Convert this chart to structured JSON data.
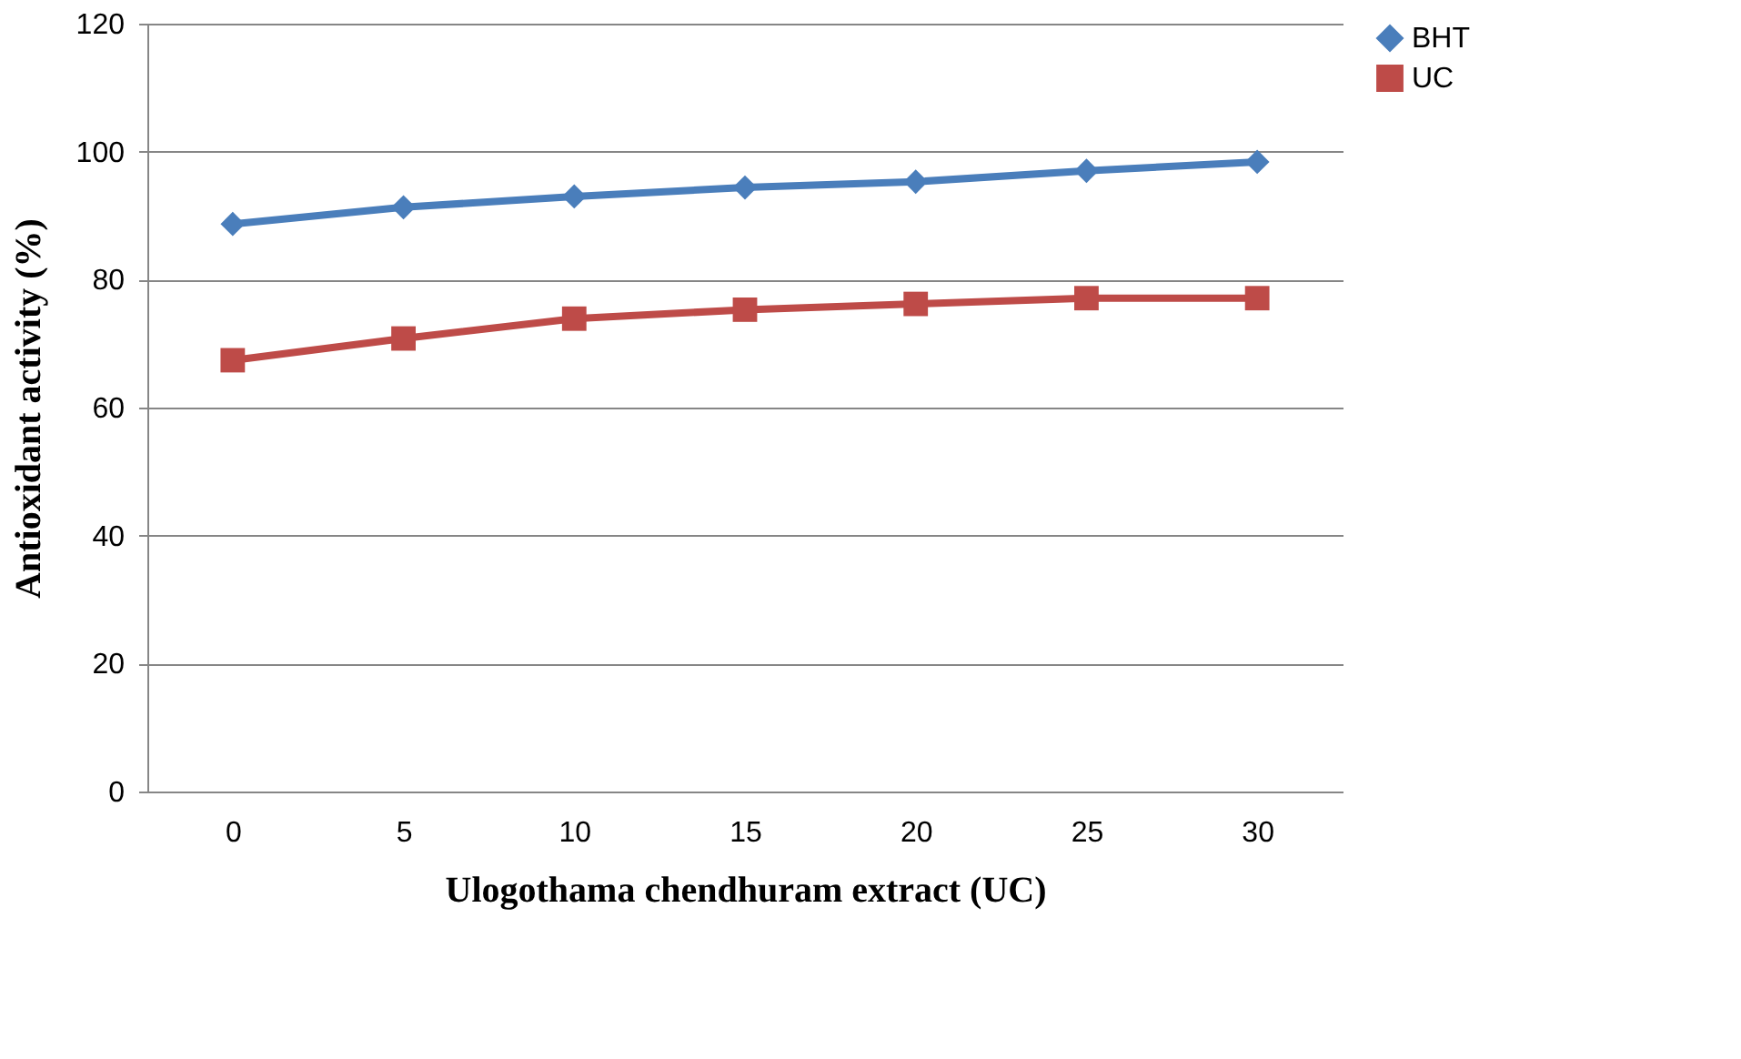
{
  "chart_data": {
    "type": "line",
    "xlabel": "Ulogothama chendhuram extract (UC)",
    "ylabel": "Antioxidant  activity (%)",
    "categories": [
      "0",
      "5",
      "10",
      "15",
      "20",
      "25",
      "30"
    ],
    "series": [
      {
        "name": "BHT",
        "color": "#4a7ebb",
        "marker": "diamond",
        "values": [
          88.7,
          91.3,
          93.0,
          94.4,
          95.3,
          97.0,
          98.4
        ]
      },
      {
        "name": "UC",
        "color": "#be4b48",
        "marker": "square",
        "values": [
          67.4,
          70.8,
          73.9,
          75.3,
          76.2,
          77.1,
          77.1
        ]
      }
    ],
    "ylim": [
      0,
      120
    ],
    "yticks": [
      0,
      20,
      40,
      60,
      80,
      100,
      120
    ],
    "grid": "y",
    "legend": "right",
    "line_style": "solid"
  }
}
